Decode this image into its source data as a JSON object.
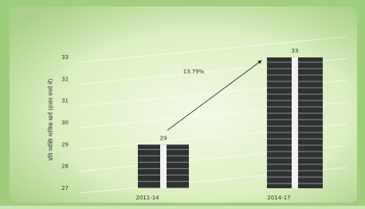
{
  "chart_data": {
    "type": "bar",
    "ylabel": "प्रति व्यक्ति मासिक खर्च (हजार रुपये में)",
    "annotation": "13.79%",
    "categories": [
      "2011-14",
      "2014-17"
    ],
    "values": [
      29,
      33
    ],
    "color": "#2e3230",
    "ylim": [
      27,
      33
    ],
    "yticks": [
      27,
      28,
      29,
      30,
      31,
      32,
      33
    ],
    "grid": true
  }
}
